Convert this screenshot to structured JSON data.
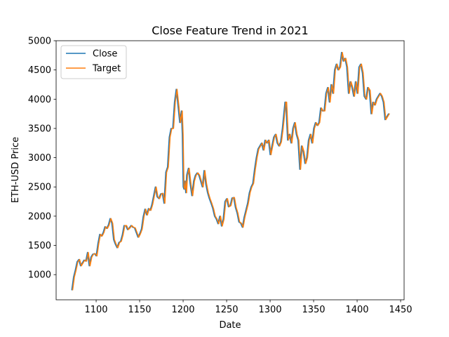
{
  "chart_data": {
    "type": "line",
    "title": "Close Feature Trend in 2021",
    "xlabel": "Date",
    "ylabel": "ETH-USD Price",
    "xlim": [
      1054,
      1454
    ],
    "ylim": [
      570,
      5000
    ],
    "xticks": [
      1100,
      1150,
      1200,
      1250,
      1300,
      1350,
      1400,
      1450
    ],
    "yticks": [
      1000,
      1500,
      2000,
      2500,
      3000,
      3500,
      4000,
      4500,
      5000
    ],
    "grid": false,
    "legend_position": "top-left",
    "series": [
      {
        "name": "Close",
        "color": "#1f77b4",
        "x": [
          1072,
          1074,
          1076,
          1078,
          1080,
          1082,
          1084,
          1086,
          1088,
          1090,
          1092,
          1094,
          1096,
          1098,
          1100,
          1102,
          1104,
          1106,
          1108,
          1110,
          1112,
          1114,
          1116,
          1118,
          1120,
          1122,
          1124,
          1126,
          1128,
          1130,
          1132,
          1134,
          1136,
          1138,
          1140,
          1142,
          1144,
          1146,
          1148,
          1150,
          1152,
          1154,
          1156,
          1158,
          1160,
          1162,
          1164,
          1166,
          1168,
          1170,
          1172,
          1174,
          1176,
          1178,
          1180,
          1182,
          1184,
          1186,
          1188,
          1190,
          1192,
          1194,
          1196,
          1198,
          1199,
          1200,
          1201,
          1202,
          1203,
          1204,
          1206,
          1208,
          1210,
          1212,
          1214,
          1216,
          1218,
          1220,
          1222,
          1224,
          1226,
          1228,
          1230,
          1232,
          1234,
          1236,
          1238,
          1240,
          1242,
          1244,
          1246,
          1248,
          1250,
          1252,
          1254,
          1256,
          1258,
          1260,
          1262,
          1264,
          1266,
          1268,
          1270,
          1272,
          1274,
          1276,
          1278,
          1280,
          1282,
          1284,
          1286,
          1288,
          1290,
          1292,
          1294,
          1296,
          1298,
          1300,
          1302,
          1304,
          1306,
          1308,
          1310,
          1312,
          1314,
          1316,
          1317,
          1318,
          1320,
          1322,
          1324,
          1326,
          1328,
          1330,
          1332,
          1334,
          1336,
          1338,
          1340,
          1342,
          1344,
          1346,
          1348,
          1350,
          1352,
          1354,
          1356,
          1358,
          1360,
          1362,
          1364,
          1366,
          1368,
          1370,
          1372,
          1374,
          1376,
          1378,
          1380,
          1382,
          1384,
          1386,
          1388,
          1390,
          1392,
          1394,
          1396,
          1398,
          1400,
          1402,
          1404,
          1406,
          1408,
          1410,
          1412,
          1414,
          1416,
          1418,
          1420,
          1422,
          1424,
          1426,
          1428,
          1430,
          1432,
          1434,
          1436
        ],
        "y": [
          740,
          960,
          1080,
          1220,
          1260,
          1150,
          1200,
          1250,
          1230,
          1380,
          1150,
          1300,
          1350,
          1360,
          1320,
          1530,
          1690,
          1660,
          1720,
          1820,
          1790,
          1850,
          1960,
          1880,
          1600,
          1520,
          1460,
          1550,
          1570,
          1680,
          1840,
          1840,
          1770,
          1800,
          1840,
          1810,
          1800,
          1720,
          1640,
          1700,
          1780,
          1990,
          2120,
          2020,
          2130,
          2100,
          2200,
          2350,
          2500,
          2330,
          2300,
          2380,
          2390,
          2220,
          2750,
          2840,
          3350,
          3500,
          3500,
          3950,
          4170,
          3900,
          3600,
          3800,
          3400,
          2500,
          2460,
          2600,
          2400,
          2700,
          2820,
          2550,
          2350,
          2600,
          2700,
          2740,
          2700,
          2600,
          2500,
          2780,
          2550,
          2400,
          2300,
          2220,
          2130,
          2000,
          1950,
          1870,
          2000,
          1830,
          1950,
          2250,
          2300,
          2160,
          2180,
          2310,
          2320,
          2150,
          2050,
          1900,
          1880,
          1810,
          1980,
          2100,
          2220,
          2400,
          2500,
          2560,
          2800,
          3000,
          3150,
          3200,
          3250,
          3130,
          3300,
          3250,
          3300,
          3050,
          3200,
          3350,
          3400,
          3250,
          3200,
          3270,
          3500,
          3800,
          3950,
          3950,
          3300,
          3400,
          3250,
          3500,
          3600,
          3400,
          3300,
          2800,
          3200,
          3100,
          2900,
          3000,
          3300,
          3400,
          3250,
          3500,
          3600,
          3550,
          3600,
          3850,
          3800,
          3800,
          4100,
          4200,
          3950,
          4250,
          4100,
          4500,
          4600,
          4500,
          4550,
          4800,
          4650,
          4700,
          4550,
          4100,
          4300,
          4200,
          4050,
          4300,
          4100,
          4550,
          4600,
          4450,
          4050,
          4000,
          4200,
          4150,
          3750,
          3950,
          3900,
          4000,
          4050,
          4100,
          4050,
          3950,
          3650,
          3700,
          3750
        ]
      },
      {
        "name": "Target",
        "color": "#ff7f0e",
        "x": [
          1073,
          1075,
          1077,
          1079,
          1081,
          1083,
          1085,
          1087,
          1089,
          1091,
          1093,
          1095,
          1097,
          1099,
          1101,
          1103,
          1105,
          1107,
          1109,
          1111,
          1113,
          1115,
          1117,
          1119,
          1121,
          1123,
          1125,
          1127,
          1129,
          1131,
          1133,
          1135,
          1137,
          1139,
          1141,
          1143,
          1145,
          1147,
          1149,
          1151,
          1153,
          1155,
          1157,
          1159,
          1161,
          1163,
          1165,
          1167,
          1169,
          1171,
          1173,
          1175,
          1177,
          1179,
          1181,
          1183,
          1185,
          1187,
          1189,
          1191,
          1193,
          1195,
          1197,
          1199,
          1200,
          1201,
          1202,
          1203,
          1204,
          1205,
          1207,
          1209,
          1211,
          1213,
          1215,
          1217,
          1219,
          1221,
          1223,
          1225,
          1227,
          1229,
          1231,
          1233,
          1235,
          1237,
          1239,
          1241,
          1243,
          1245,
          1247,
          1249,
          1251,
          1253,
          1255,
          1257,
          1259,
          1261,
          1263,
          1265,
          1267,
          1269,
          1271,
          1273,
          1275,
          1277,
          1279,
          1281,
          1283,
          1285,
          1287,
          1289,
          1291,
          1293,
          1295,
          1297,
          1299,
          1301,
          1303,
          1305,
          1307,
          1309,
          1311,
          1313,
          1315,
          1317,
          1318,
          1319,
          1321,
          1323,
          1325,
          1327,
          1329,
          1331,
          1333,
          1335,
          1337,
          1339,
          1341,
          1343,
          1345,
          1347,
          1349,
          1351,
          1353,
          1355,
          1357,
          1359,
          1361,
          1363,
          1365,
          1367,
          1369,
          1371,
          1373,
          1375,
          1377,
          1379,
          1381,
          1383,
          1385,
          1387,
          1389,
          1391,
          1393,
          1395,
          1397,
          1399,
          1401,
          1403,
          1405,
          1407,
          1409,
          1411,
          1413,
          1415,
          1417,
          1419,
          1421,
          1423,
          1425,
          1427,
          1429,
          1431,
          1433,
          1435,
          1437
        ],
        "y": [
          740,
          960,
          1080,
          1220,
          1260,
          1150,
          1200,
          1250,
          1230,
          1380,
          1150,
          1300,
          1350,
          1360,
          1320,
          1530,
          1690,
          1660,
          1720,
          1820,
          1790,
          1850,
          1960,
          1880,
          1600,
          1520,
          1460,
          1550,
          1570,
          1680,
          1840,
          1840,
          1770,
          1800,
          1840,
          1810,
          1800,
          1720,
          1640,
          1700,
          1780,
          1990,
          2120,
          2020,
          2130,
          2100,
          2200,
          2350,
          2500,
          2330,
          2300,
          2380,
          2390,
          2220,
          2750,
          2840,
          3350,
          3500,
          3500,
          3950,
          4170,
          3900,
          3600,
          3800,
          3400,
          2500,
          2460,
          2600,
          2400,
          2700,
          2820,
          2550,
          2350,
          2600,
          2700,
          2740,
          2700,
          2600,
          2500,
          2780,
          2550,
          2400,
          2300,
          2220,
          2130,
          2000,
          1950,
          1870,
          2000,
          1830,
          1950,
          2250,
          2300,
          2160,
          2180,
          2310,
          2320,
          2150,
          2050,
          1900,
          1880,
          1810,
          1980,
          2100,
          2220,
          2400,
          2500,
          2560,
          2800,
          3000,
          3150,
          3200,
          3250,
          3130,
          3300,
          3250,
          3300,
          3050,
          3200,
          3350,
          3400,
          3250,
          3200,
          3270,
          3500,
          3800,
          3950,
          3950,
          3300,
          3400,
          3250,
          3500,
          3600,
          3400,
          3300,
          2800,
          3200,
          3100,
          2900,
          3000,
          3300,
          3400,
          3250,
          3500,
          3600,
          3550,
          3600,
          3850,
          3800,
          3800,
          4100,
          4200,
          3950,
          4250,
          4100,
          4500,
          4600,
          4500,
          4550,
          4800,
          4650,
          4700,
          4550,
          4100,
          4300,
          4200,
          4050,
          4300,
          4100,
          4550,
          4600,
          4450,
          4050,
          4000,
          4200,
          4150,
          3750,
          3950,
          3900,
          4000,
          4050,
          4100,
          4050,
          3950,
          3650,
          3700,
          3750
        ]
      }
    ]
  }
}
